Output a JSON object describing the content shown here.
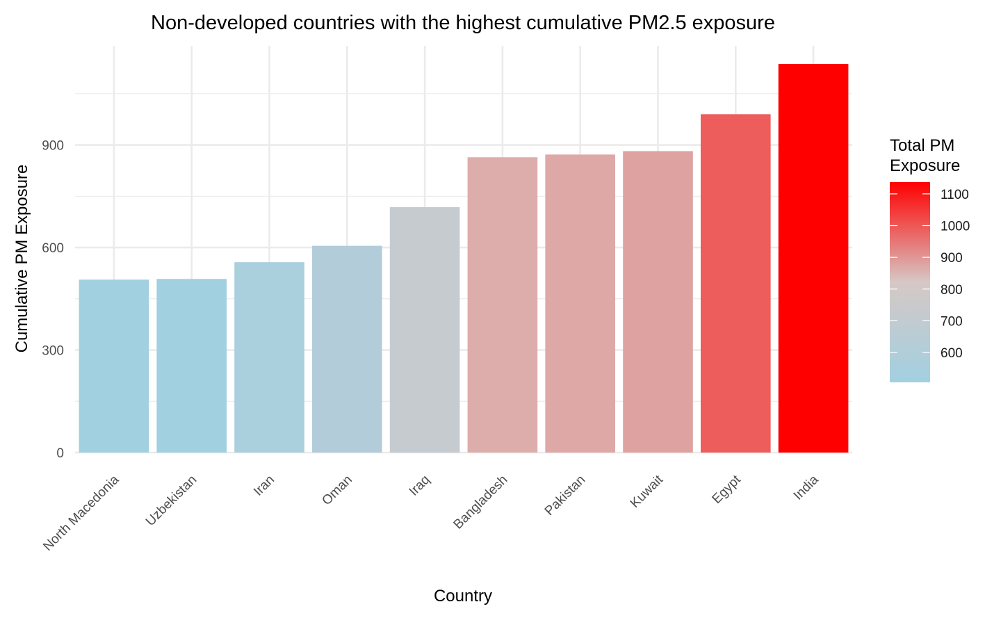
{
  "chart_data": {
    "type": "bar",
    "title": "Non-developed countries with the highest cumulative PM2.5 exposure",
    "xlabel": "Country",
    "ylabel": "Cumulative PM Exposure",
    "categories": [
      "North Macedonia",
      "Uzbekistan",
      "Iran",
      "Oman",
      "Iraq",
      "Bangladesh",
      "Pakistan",
      "Kuwait",
      "Egypt",
      "India"
    ],
    "values": [
      506,
      508,
      557,
      605,
      718,
      864,
      872,
      882,
      990,
      1137
    ],
    "ylim": [
      0,
      1190
    ],
    "yticks": [
      0,
      300,
      600,
      900
    ],
    "grid": true,
    "legend": {
      "title_lines": [
        "Total PM",
        "Exposure"
      ],
      "placement": "right",
      "ticks": [
        600,
        700,
        800,
        900,
        1000,
        1100
      ],
      "range": [
        506,
        1137
      ],
      "color_low": "#a1d0e1",
      "color_mid": "#d6c8c6",
      "color_high": "#ff0000"
    }
  }
}
